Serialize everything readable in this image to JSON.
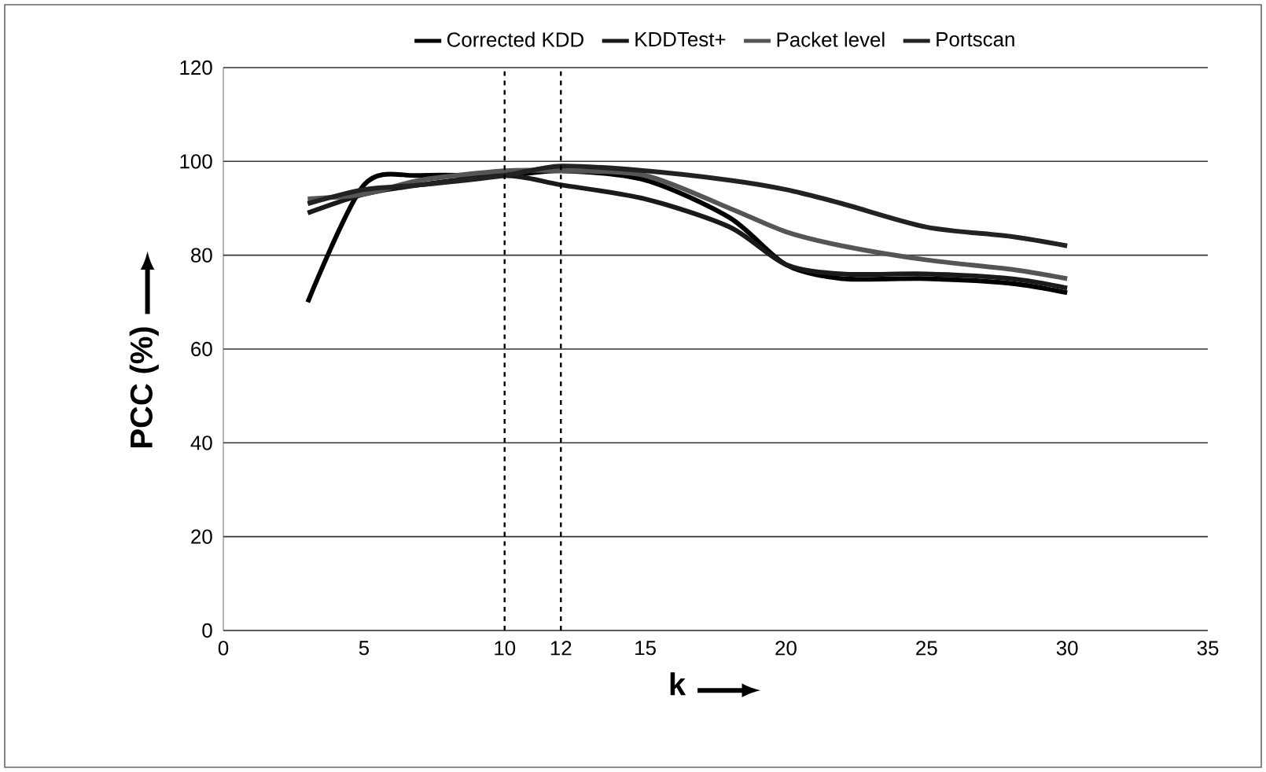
{
  "chart_data": {
    "type": "line",
    "xlabel": "k",
    "ylabel": "PCC (%)",
    "x": [
      3,
      5,
      7,
      10,
      12,
      15,
      18,
      20,
      22,
      25,
      28,
      30
    ],
    "series": [
      {
        "name": "Corrected KDD",
        "color": "#000000",
        "values": [
          70,
          95,
          97,
          97,
          98,
          96,
          88,
          78,
          75,
          75,
          74,
          72
        ]
      },
      {
        "name": "KDDTest+",
        "color": "#1a1a1a",
        "values": [
          89,
          93,
          95,
          97,
          95,
          92,
          86,
          78,
          76,
          76,
          75,
          73
        ]
      },
      {
        "name": "Packet level",
        "color": "#555555",
        "values": [
          92,
          93,
          96,
          98,
          98,
          97,
          90,
          85,
          82,
          79,
          77,
          75
        ]
      },
      {
        "name": "Portscan",
        "color": "#222222",
        "values": [
          91,
          94,
          95,
          97,
          99,
          98,
          96,
          94,
          91,
          86,
          84,
          82
        ]
      }
    ],
    "xlim": [
      0,
      35
    ],
    "ylim": [
      0,
      120
    ],
    "xticks": [
      0,
      5,
      10,
      12,
      15,
      20,
      25,
      30,
      35
    ],
    "yticks": [
      0,
      20,
      40,
      60,
      80,
      100,
      120
    ],
    "ref_lines": [
      {
        "axis": "x",
        "value": 10,
        "line_style": "dashed",
        "color": "#000000"
      },
      {
        "axis": "x",
        "value": 12,
        "line_style": "dashed",
        "color": "#000000"
      }
    ],
    "grid": "y",
    "legend": "top",
    "marker": "none",
    "line_style": "solid"
  }
}
